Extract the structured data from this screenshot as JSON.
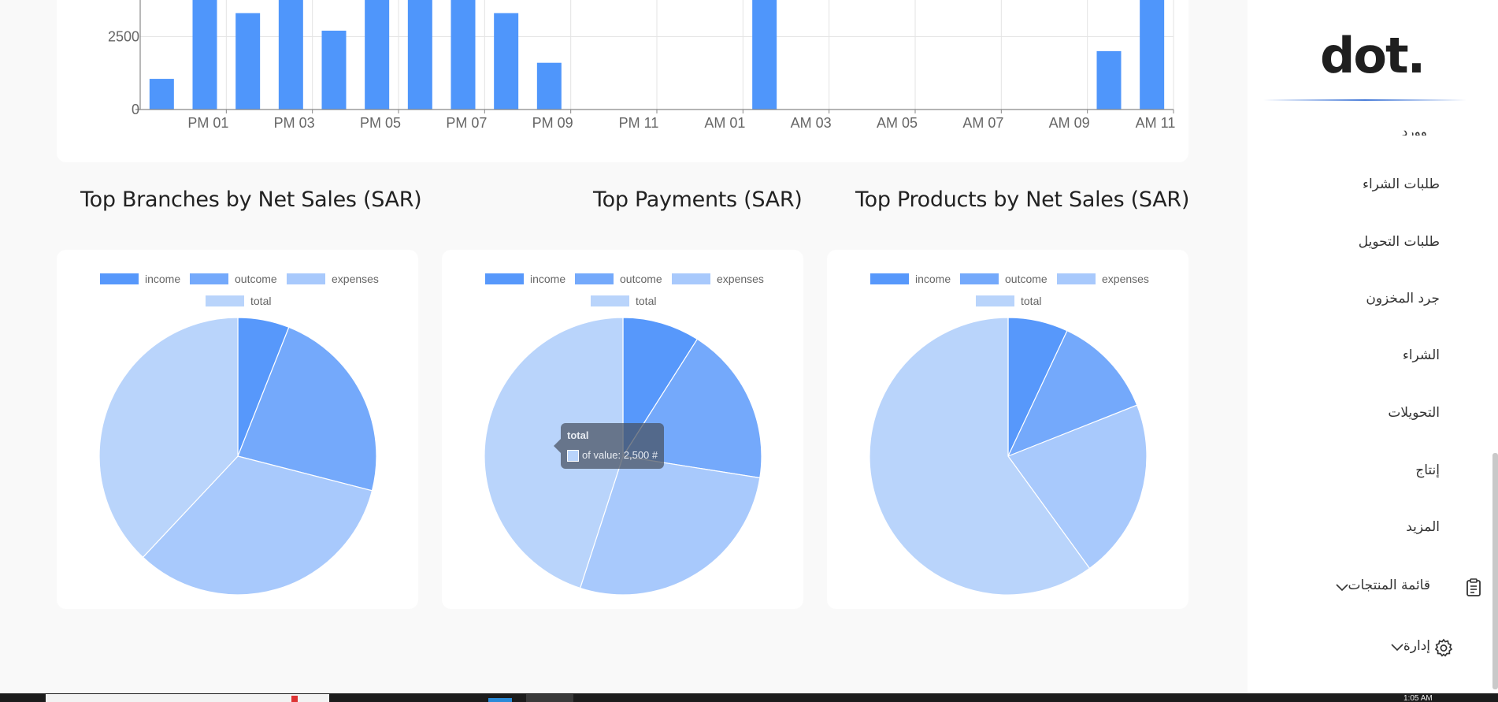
{
  "bar_chart": {
    "type": "bar",
    "y_tick_labels": [
      "0",
      "2500"
    ],
    "x_tick_labels": [
      "PM 01",
      "PM 03",
      "PM 05",
      "PM 07",
      "PM 09",
      "PM 11",
      "AM 01",
      "AM 03",
      "AM 05",
      "AM 07",
      "AM 09",
      "AM 11"
    ],
    "values": [
      1050,
      7000,
      3300,
      7000,
      2700,
      7000,
      7000,
      7000,
      3300,
      1600,
      0,
      0,
      0,
      0,
      7000,
      0,
      0,
      0,
      0,
      0,
      0,
      0,
      2000,
      7000
    ],
    "visible_ylim": [
      0,
      3750
    ],
    "bar_color": "#4f96fb",
    "grid": true
  },
  "sections": {
    "branches_title": "Top Branches by Net Sales (SAR)",
    "payments_title": "Top Payments (SAR)",
    "products_title": "Top Products by Net Sales (SAR)"
  },
  "chart_data": [
    {
      "type": "pie",
      "title": "Top Branches by Net Sales (SAR)",
      "labels": [
        "income",
        "outcome",
        "expenses",
        "total"
      ],
      "values": [
        6,
        23,
        33,
        38
      ],
      "colors": [
        "#5798fb",
        "#74a9fb",
        "#a8c9fc",
        "#b9d4fb"
      ]
    },
    {
      "type": "pie",
      "title": "Top Payments (SAR)",
      "labels": [
        "income",
        "outcome",
        "expenses",
        "total"
      ],
      "values": [
        9,
        18.5,
        27.5,
        45
      ],
      "colors": [
        "#5798fb",
        "#74a9fb",
        "#a8c9fc",
        "#b9d4fb"
      ]
    },
    {
      "type": "pie",
      "title": "Top Products by Net Sales (SAR)",
      "labels": [
        "income",
        "outcome",
        "expenses",
        "total"
      ],
      "values": [
        7,
        12,
        21,
        60
      ],
      "colors": [
        "#5798fb",
        "#74a9fb",
        "#a8c9fc",
        "#b9d4fb"
      ]
    }
  ],
  "tooltip": {
    "title": "total",
    "body": "of value: 2,500 #"
  },
  "sidebar": {
    "logo": "dot.",
    "partial_item": "وورد",
    "items": [
      {
        "label": "طلبات الشراء"
      },
      {
        "label": "طلبات التحويل"
      },
      {
        "label": "جرد المخزون"
      },
      {
        "label": "الشراء"
      },
      {
        "label": "التحويلات"
      },
      {
        "label": "إنتاج"
      },
      {
        "label": "المزيد"
      },
      {
        "label": "قائمة المنتجات"
      },
      {
        "label": "إدارة"
      }
    ]
  },
  "taskbar": {
    "clock": "1:05 AM"
  }
}
